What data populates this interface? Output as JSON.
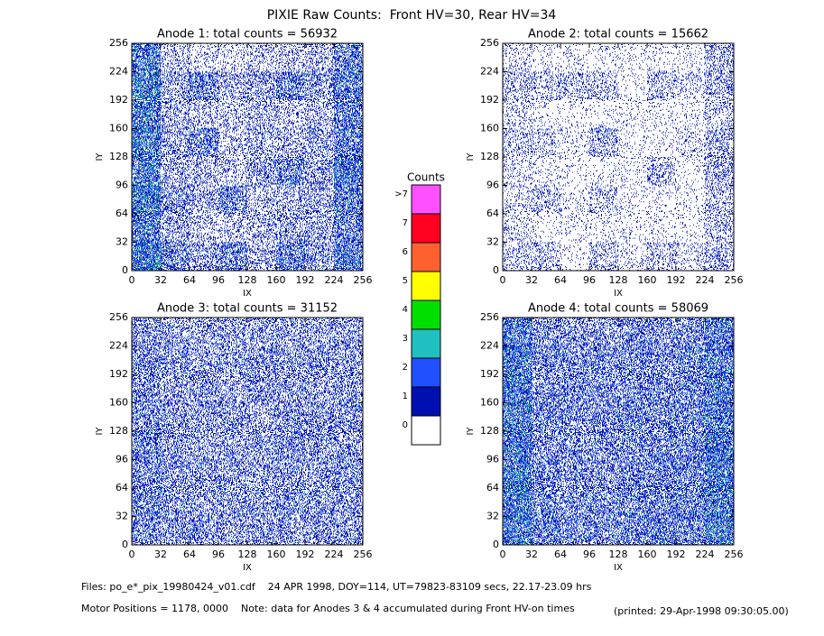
{
  "title": "PIXIE Raw Counts:  Front HV=30, Rear HV=34",
  "chart_data": [
    {
      "type": "heatmap",
      "title": "Anode 1: total counts = 56932",
      "xlabel": "IX",
      "ylabel": "IY",
      "xlim": [
        0,
        256
      ],
      "ylim": [
        0,
        256
      ],
      "xticks": [
        0,
        32,
        64,
        96,
        128,
        160,
        192,
        224,
        256
      ],
      "yticks": [
        0,
        32,
        64,
        96,
        128,
        160,
        192,
        224,
        256
      ],
      "x_bins": [
        0,
        32,
        64,
        96,
        128,
        160,
        192,
        224,
        256
      ],
      "y_bins": [
        0,
        32,
        64,
        96,
        128,
        160,
        192,
        224,
        256
      ],
      "values": [
        [
          1.6,
          0.8,
          0.5,
          0.8,
          0.4,
          0.9,
          0.6,
          1.1
        ],
        [
          1.2,
          0.5,
          0.3,
          0.3,
          0.4,
          0.5,
          0.5,
          0.9
        ],
        [
          1.5,
          0.6,
          0.4,
          0.8,
          0.3,
          0.4,
          0.5,
          1.0
        ],
        [
          1.2,
          0.4,
          0.4,
          0.3,
          0.5,
          0.8,
          0.5,
          1.2
        ],
        [
          1.5,
          0.5,
          0.8,
          0.3,
          0.4,
          0.4,
          0.5,
          1.0
        ],
        [
          1.2,
          0.4,
          0.3,
          0.3,
          0.4,
          0.3,
          0.4,
          0.9
        ],
        [
          1.5,
          0.5,
          0.8,
          0.4,
          0.5,
          0.8,
          0.5,
          1.0
        ],
        [
          1.2,
          0.3,
          0.2,
          0.2,
          0.3,
          0.3,
          0.4,
          0.9
        ]
      ]
    },
    {
      "type": "heatmap",
      "title": "Anode 2: total counts = 15662",
      "xlabel": "IX",
      "ylabel": "IY",
      "xlim": [
        0,
        256
      ],
      "ylim": [
        0,
        256
      ],
      "xticks": [
        0,
        32,
        64,
        96,
        128,
        160,
        192,
        224,
        256
      ],
      "yticks": [
        0,
        32,
        64,
        96,
        128,
        160,
        192,
        224,
        256
      ],
      "x_bins": [
        0,
        32,
        64,
        96,
        128,
        160,
        192,
        224,
        256
      ],
      "y_bins": [
        0,
        32,
        64,
        96,
        128,
        160,
        192,
        224,
        256
      ],
      "values": [
        [
          0.3,
          0.3,
          0.1,
          0.3,
          0.1,
          0.3,
          0.2,
          0.4
        ],
        [
          0.2,
          0.1,
          0.1,
          0.1,
          0.1,
          0.1,
          0.1,
          0.3
        ],
        [
          0.2,
          0.3,
          0.1,
          0.3,
          0.1,
          0.1,
          0.1,
          0.3
        ],
        [
          0.2,
          0.1,
          0.1,
          0.1,
          0.1,
          0.3,
          0.1,
          0.4
        ],
        [
          0.3,
          0.3,
          0.1,
          0.4,
          0.1,
          0.1,
          0.2,
          0.4
        ],
        [
          0.2,
          0.1,
          0.1,
          0.1,
          0.1,
          0.1,
          0.1,
          0.3
        ],
        [
          0.3,
          0.3,
          0.3,
          0.3,
          0.1,
          0.3,
          0.2,
          0.4
        ],
        [
          0.2,
          0.1,
          0.1,
          0.1,
          0.1,
          0.1,
          0.1,
          0.4
        ]
      ]
    },
    {
      "type": "heatmap",
      "title": "Anode 3: total counts = 31152",
      "xlabel": "IX",
      "ylabel": "IY",
      "xlim": [
        0,
        256
      ],
      "ylim": [
        0,
        256
      ],
      "xticks": [
        0,
        32,
        64,
        96,
        128,
        160,
        192,
        224,
        256
      ],
      "yticks": [
        0,
        32,
        64,
        96,
        128,
        160,
        192,
        224,
        256
      ],
      "x_bins": [
        0,
        32,
        64,
        96,
        128,
        160,
        192,
        224,
        256
      ],
      "y_bins": [
        0,
        32,
        64,
        96,
        128,
        160,
        192,
        224,
        256
      ],
      "values": [
        [
          0.7,
          0.6,
          0.6,
          0.5,
          0.6,
          0.6,
          0.6,
          0.6
        ],
        [
          0.8,
          0.6,
          0.5,
          0.6,
          0.6,
          0.7,
          0.6,
          0.6
        ],
        [
          0.7,
          0.6,
          0.6,
          0.6,
          0.5,
          0.6,
          0.6,
          0.7
        ],
        [
          0.8,
          0.6,
          0.5,
          0.5,
          0.6,
          0.7,
          0.6,
          0.6
        ],
        [
          0.7,
          0.6,
          0.6,
          0.6,
          0.5,
          0.6,
          0.6,
          0.6
        ],
        [
          0.7,
          0.5,
          0.6,
          0.5,
          0.6,
          0.6,
          0.5,
          0.6
        ],
        [
          0.7,
          0.6,
          0.5,
          0.6,
          0.6,
          0.6,
          0.6,
          0.6
        ],
        [
          0.6,
          0.5,
          0.5,
          0.5,
          0.5,
          0.5,
          0.5,
          0.5
        ]
      ]
    },
    {
      "type": "heatmap",
      "title": "Anode 4: total counts = 58069",
      "xlabel": "IX",
      "ylabel": "IY",
      "xlim": [
        0,
        256
      ],
      "ylim": [
        0,
        256
      ],
      "xticks": [
        0,
        32,
        64,
        96,
        128,
        160,
        192,
        224,
        256
      ],
      "yticks": [
        0,
        32,
        64,
        96,
        128,
        160,
        192,
        224,
        256
      ],
      "x_bins": [
        0,
        32,
        64,
        96,
        128,
        160,
        192,
        224,
        256
      ],
      "y_bins": [
        0,
        32,
        64,
        96,
        128,
        160,
        192,
        224,
        256
      ],
      "values": [
        [
          1.4,
          0.9,
          0.8,
          0.8,
          0.8,
          0.9,
          0.9,
          1.4
        ],
        [
          1.4,
          0.8,
          0.7,
          0.7,
          0.8,
          0.8,
          0.9,
          1.3
        ],
        [
          1.4,
          0.8,
          0.7,
          0.7,
          0.8,
          0.8,
          0.9,
          1.4
        ],
        [
          1.3,
          0.7,
          0.7,
          0.7,
          0.7,
          0.8,
          0.8,
          1.3
        ],
        [
          1.3,
          0.8,
          0.7,
          0.7,
          0.8,
          0.8,
          0.8,
          1.2
        ],
        [
          1.3,
          0.7,
          0.7,
          0.7,
          0.7,
          0.8,
          0.8,
          1.2
        ],
        [
          1.3,
          0.7,
          0.7,
          0.7,
          0.7,
          0.7,
          0.8,
          1.2
        ],
        [
          1.2,
          0.7,
          0.6,
          0.6,
          0.7,
          0.7,
          0.7,
          1.1
        ]
      ]
    }
  ],
  "colorbar": {
    "title": "Counts",
    "ticks": [
      0,
      1,
      2,
      3,
      4,
      5,
      6,
      7,
      {
        "value": 8,
        "label": ">7"
      }
    ],
    "colors": [
      "#ffffff",
      "#0010b0",
      "#2050ff",
      "#20c0c0",
      "#00e000",
      "#ffff00",
      "#ff6030",
      "#ff0020",
      "#ff50ff"
    ]
  },
  "footer": [
    "Files: po_e*_pix_19980424_v01.cdf    24 APR 1998, DOY=114, UT=79823-83109 secs, 22.17-23.09 hrs",
    "Motor Positions = 1178, 0000    Note: data for Anodes 3 & 4 accumulated during Front HV-on times",
    "(printed: 29-Apr-1998 09:30:05.00)"
  ]
}
